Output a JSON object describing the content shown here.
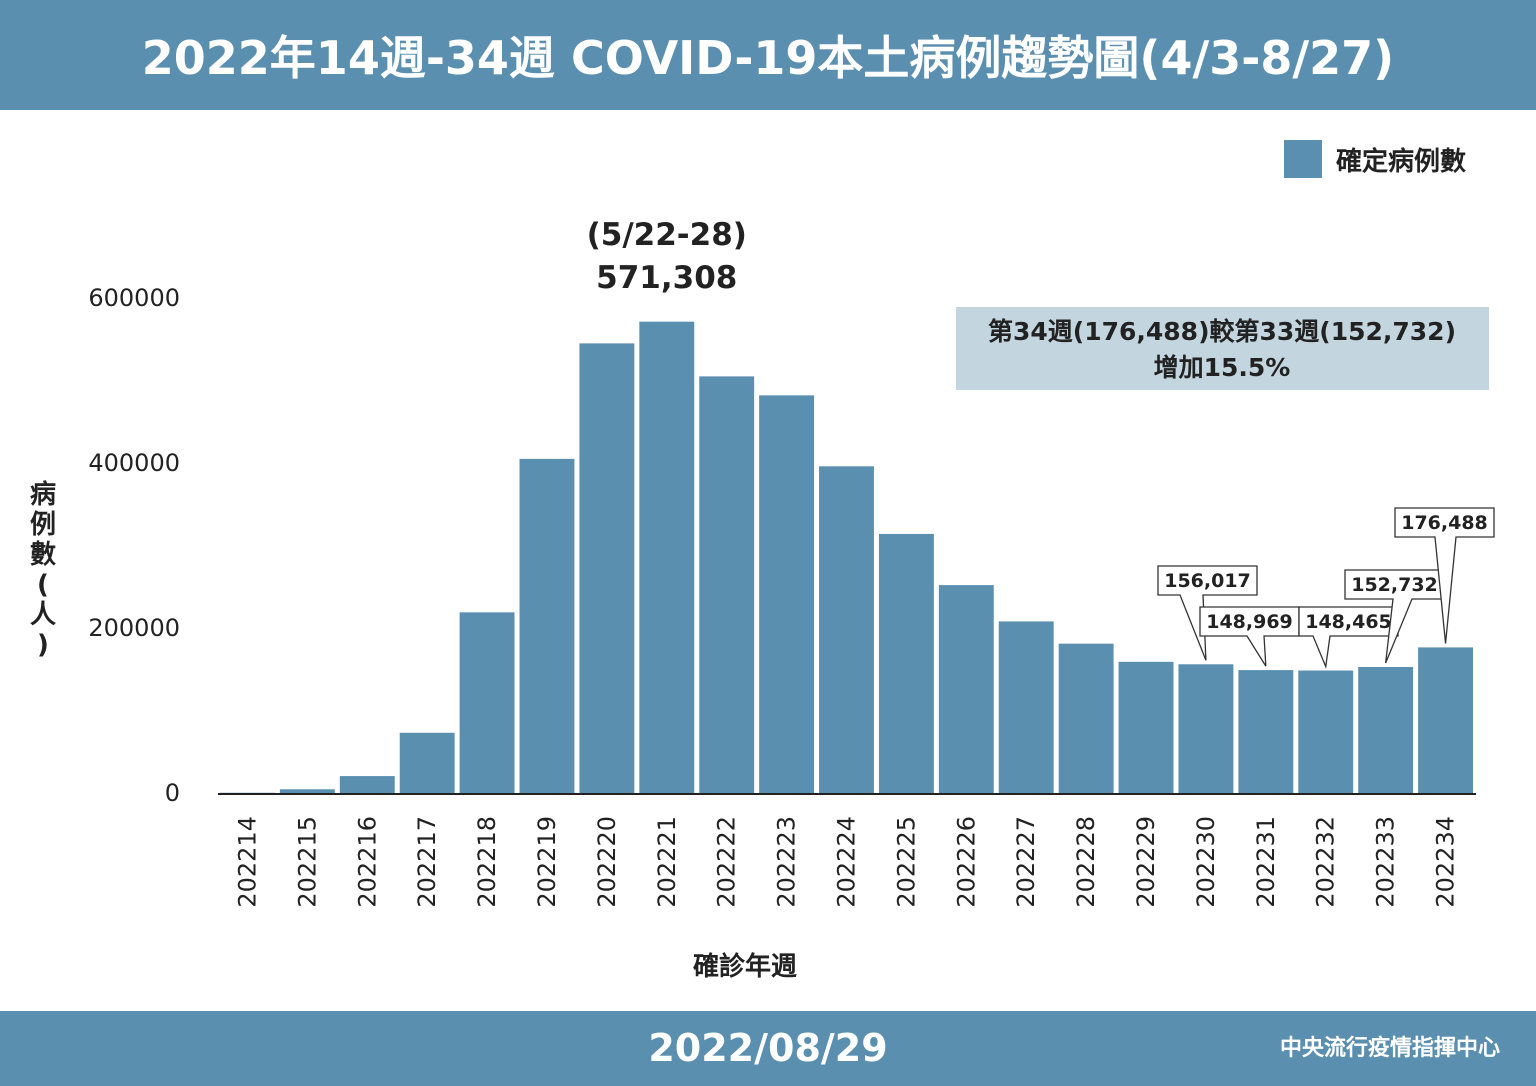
{
  "header": {
    "title": "2022年14週-34週 COVID-19本土病例趨勢圖(4/3-8/27)"
  },
  "footer": {
    "date": "2022/08/29",
    "org": "中央流行疫情指揮中心"
  },
  "colors": {
    "bar": "#5b8fb0",
    "header": "#5b8fb0",
    "note_bg": "#c3d6e0"
  },
  "chart_data": {
    "type": "bar",
    "title": "2022年14週-34週 COVID-19本土病例趨勢圖(4/3-8/27)",
    "xlabel": "確診年週",
    "ylabel": "病例數(人)",
    "ylim": [
      0,
      600000
    ],
    "yticks": [
      0,
      200000,
      400000,
      600000
    ],
    "grid": false,
    "legend_position": "top-right",
    "categories": [
      "202214",
      "202215",
      "202216",
      "202217",
      "202218",
      "202219",
      "202220",
      "202221",
      "202222",
      "202223",
      "202224",
      "202225",
      "202226",
      "202227",
      "202228",
      "202229",
      "202230",
      "202231",
      "202232",
      "202233",
      "202234"
    ],
    "series": [
      {
        "name": "確定病例數",
        "values": [
          300,
          4500,
          20500,
          73000,
          219000,
          405000,
          545000,
          571308,
          505000,
          482000,
          396000,
          314000,
          252000,
          208000,
          181000,
          159000,
          156017,
          148969,
          148465,
          152732,
          176488
        ]
      }
    ],
    "peak_annotation": {
      "period": "(5/22-28)",
      "value": "571,308"
    },
    "callouts": [
      {
        "category": "202230",
        "label": "156,017"
      },
      {
        "category": "202231",
        "label": "148,969"
      },
      {
        "category": "202232",
        "label": "148,465"
      },
      {
        "category": "202233",
        "label": "152,732"
      },
      {
        "category": "202234",
        "label": "176,488"
      }
    ],
    "note": {
      "line1": "第34週(176,488)較第33週(152,732)",
      "line2": "增加15.5%"
    }
  }
}
